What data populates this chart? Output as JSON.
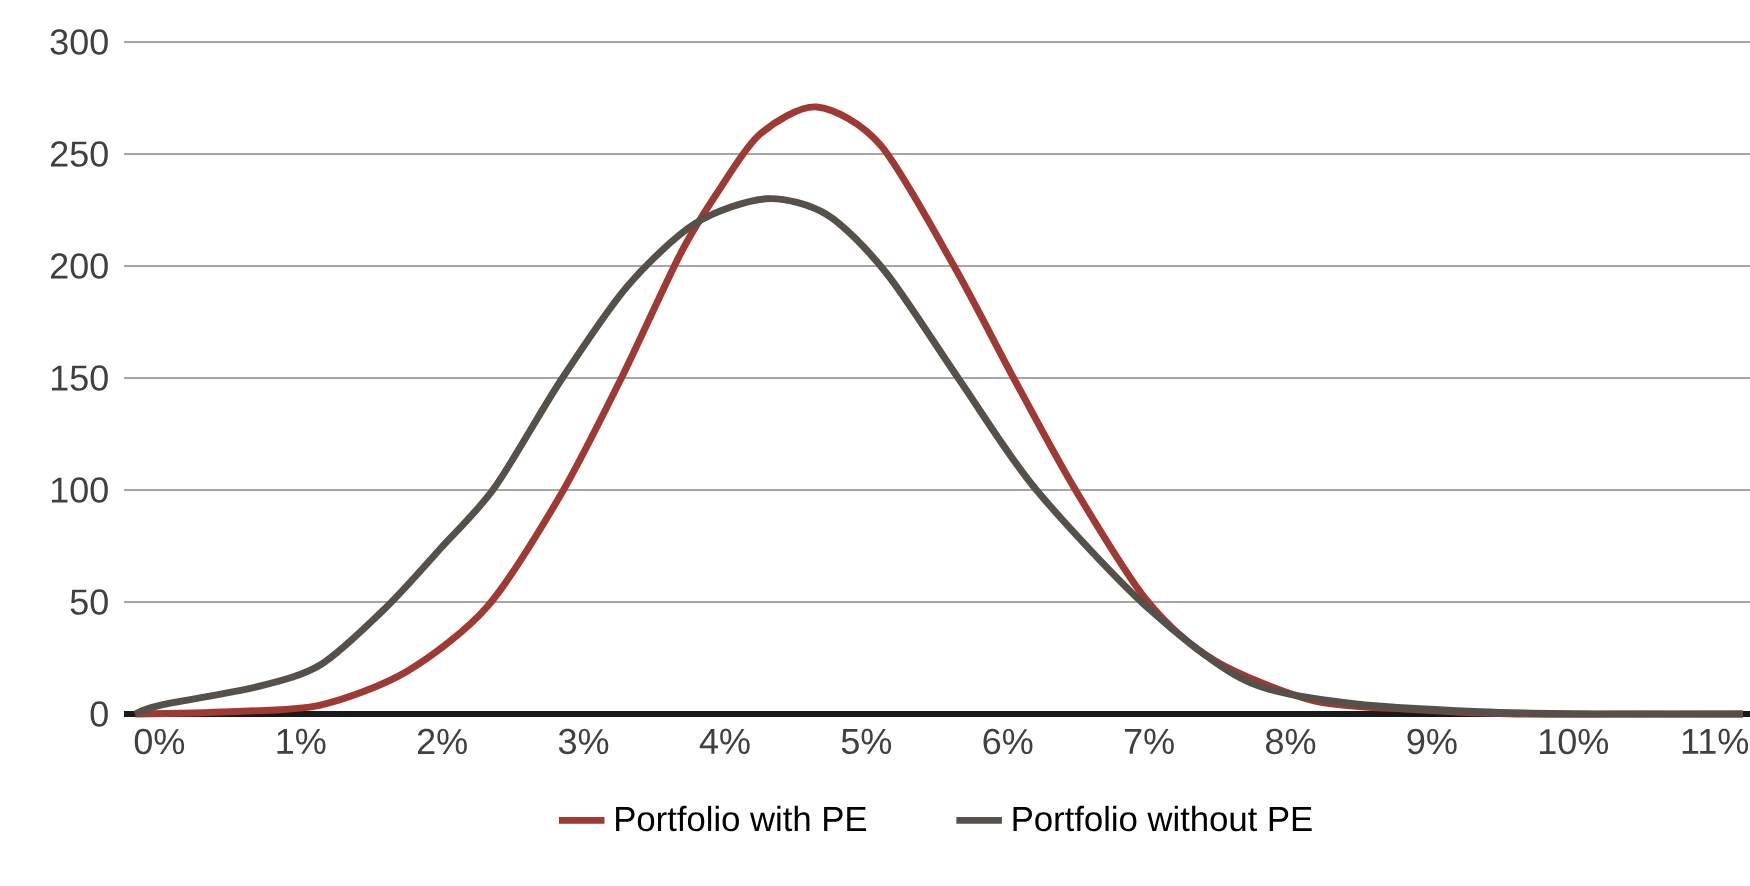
{
  "chart_data": {
    "type": "line",
    "xlim": [
      -0.25,
      11.25
    ],
    "ylim": [
      0,
      300
    ],
    "xticks": [
      {
        "value": 0,
        "label": "0%"
      },
      {
        "value": 1,
        "label": "1%"
      },
      {
        "value": 2,
        "label": "2%"
      },
      {
        "value": 3,
        "label": "3%"
      },
      {
        "value": 4,
        "label": "4%"
      },
      {
        "value": 5,
        "label": "5%"
      },
      {
        "value": 6,
        "label": "6%"
      },
      {
        "value": 7,
        "label": "7%"
      },
      {
        "value": 8,
        "label": "8%"
      },
      {
        "value": 9,
        "label": "9%"
      },
      {
        "value": 10,
        "label": "10%"
      },
      {
        "value": 11,
        "label": "11%"
      }
    ],
    "yticks": [
      0,
      50,
      100,
      150,
      200,
      250,
      300
    ],
    "grid": "y",
    "legend": "bottom",
    "series": [
      {
        "name": "Portfolio with PE",
        "color": "#9e3a33",
        "x": [
          -0.17,
          0.5,
          1.14,
          1.75,
          2.32,
          2.84,
          3.26,
          3.69,
          3.97,
          4.25,
          4.65,
          5.1,
          5.62,
          6.05,
          6.47,
          6.98,
          7.46,
          8.16,
          8.87,
          9.6,
          10.5,
          11.2
        ],
        "values": [
          0,
          1,
          4,
          19,
          48,
          98,
          149,
          206,
          235,
          259,
          271,
          254,
          200,
          149,
          101,
          51,
          24,
          6,
          2,
          0,
          0,
          0
        ]
      },
      {
        "name": "Portfolio without PE",
        "color": "#55514a",
        "x": [
          -0.17,
          0.01,
          0.68,
          1.14,
          1.61,
          1.99,
          2.37,
          2.84,
          3.31,
          3.79,
          4.29,
          4.72,
          5.14,
          5.66,
          6.19,
          6.98,
          7.68,
          8.39,
          9.34,
          10.3,
          11.2
        ],
        "values": [
          0,
          4,
          12,
          22,
          48,
          74,
          101,
          149,
          191,
          219,
          230,
          223,
          197,
          149,
          101,
          48,
          15,
          5,
          1,
          0,
          0
        ]
      }
    ]
  }
}
